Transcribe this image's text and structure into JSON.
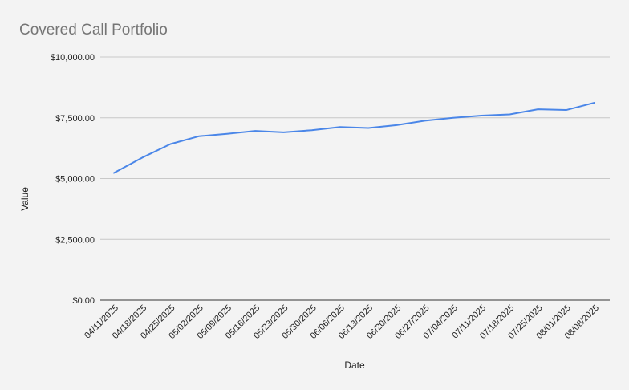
{
  "chart_data": {
    "type": "line",
    "title": "Covered Call Portfolio",
    "xlabel": "Date",
    "ylabel": "Value",
    "ylim": [
      0,
      10000
    ],
    "y_ticks": [
      {
        "value": 0,
        "label": "$0.00"
      },
      {
        "value": 2500,
        "label": "$2,500.00"
      },
      {
        "value": 5000,
        "label": "$5,000.00"
      },
      {
        "value": 7500,
        "label": "$7,500.00"
      },
      {
        "value": 10000,
        "label": "$10,000.00"
      }
    ],
    "grid": true,
    "legend": "none",
    "categories": [
      "04/11/2025",
      "04/18/2025",
      "04/25/2025",
      "05/02/2025",
      "05/09/2025",
      "05/16/2025",
      "05/23/2025",
      "05/30/2025",
      "06/06/2025",
      "06/13/2025",
      "06/20/2025",
      "06/27/2025",
      "07/04/2025",
      "07/11/2025",
      "07/18/2025",
      "07/25/2025",
      "08/01/2025",
      "08/08/2025"
    ],
    "series": [
      {
        "color": "#4a86e8",
        "values": [
          5230,
          5860,
          6420,
          6740,
          6840,
          6960,
          6900,
          6990,
          7120,
          7080,
          7200,
          7380,
          7500,
          7590,
          7640,
          7850,
          7820,
          8120
        ]
      }
    ]
  }
}
